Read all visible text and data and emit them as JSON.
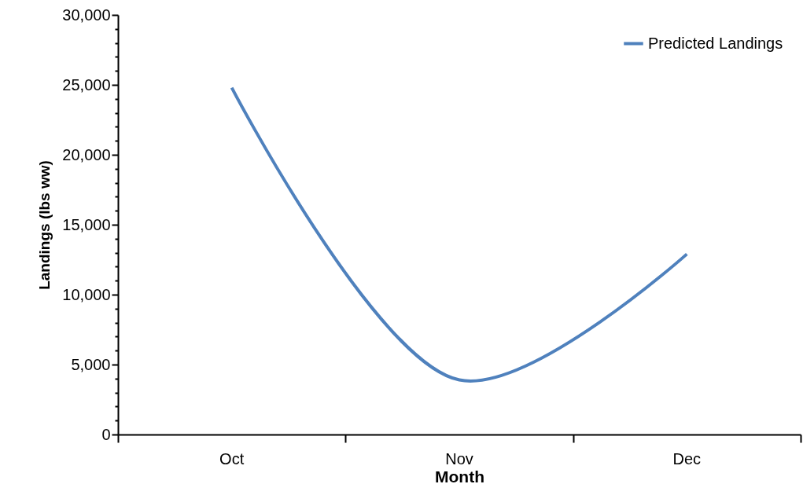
{
  "chart_data": {
    "type": "line",
    "xlabel": "Month",
    "ylabel": "Landings (lbs ww)",
    "categories": [
      "Oct",
      "Nov",
      "Dec"
    ],
    "series": [
      {
        "name": "Predicted Landings",
        "color": "#4f81bd",
        "values": [
          24800,
          3900,
          12900
        ]
      }
    ],
    "ylim": [
      0,
      30000
    ],
    "yticks": [
      0,
      {
        "value": 1000,
        "label": null
      },
      {
        "value": 2000,
        "label": null
      },
      {
        "value": 3000,
        "label": null
      },
      {
        "value": 4000,
        "label": null
      },
      {
        "value": 5000,
        "label": "5,000"
      },
      {
        "value": 6000,
        "label": null
      },
      {
        "value": 7000,
        "label": null
      },
      {
        "value": 8000,
        "label": null
      },
      {
        "value": 9000,
        "label": null
      },
      {
        "value": 10000,
        "label": "10,000"
      },
      {
        "value": 11000,
        "label": null
      },
      {
        "value": 12000,
        "label": null
      },
      {
        "value": 13000,
        "label": null
      },
      {
        "value": 14000,
        "label": null
      },
      {
        "value": 15000,
        "label": "15,000"
      },
      {
        "value": 16000,
        "label": null
      },
      {
        "value": 17000,
        "label": null
      },
      {
        "value": 18000,
        "label": null
      },
      {
        "value": 19000,
        "label": null
      },
      {
        "value": 20000,
        "label": "20,000"
      },
      {
        "value": 21000,
        "label": null
      },
      {
        "value": 22000,
        "label": null
      },
      {
        "value": 23000,
        "label": null
      },
      {
        "value": 24000,
        "label": null
      },
      {
        "value": 25000,
        "label": "25,000"
      },
      {
        "value": 26000,
        "label": null
      },
      {
        "value": 27000,
        "label": null
      },
      {
        "value": 28000,
        "label": null
      },
      {
        "value": 29000,
        "label": null
      },
      {
        "value": 30000,
        "label": "30,000"
      }
    ],
    "grid": false,
    "legend": "top right",
    "marker": "none",
    "line_style": "solid"
  }
}
